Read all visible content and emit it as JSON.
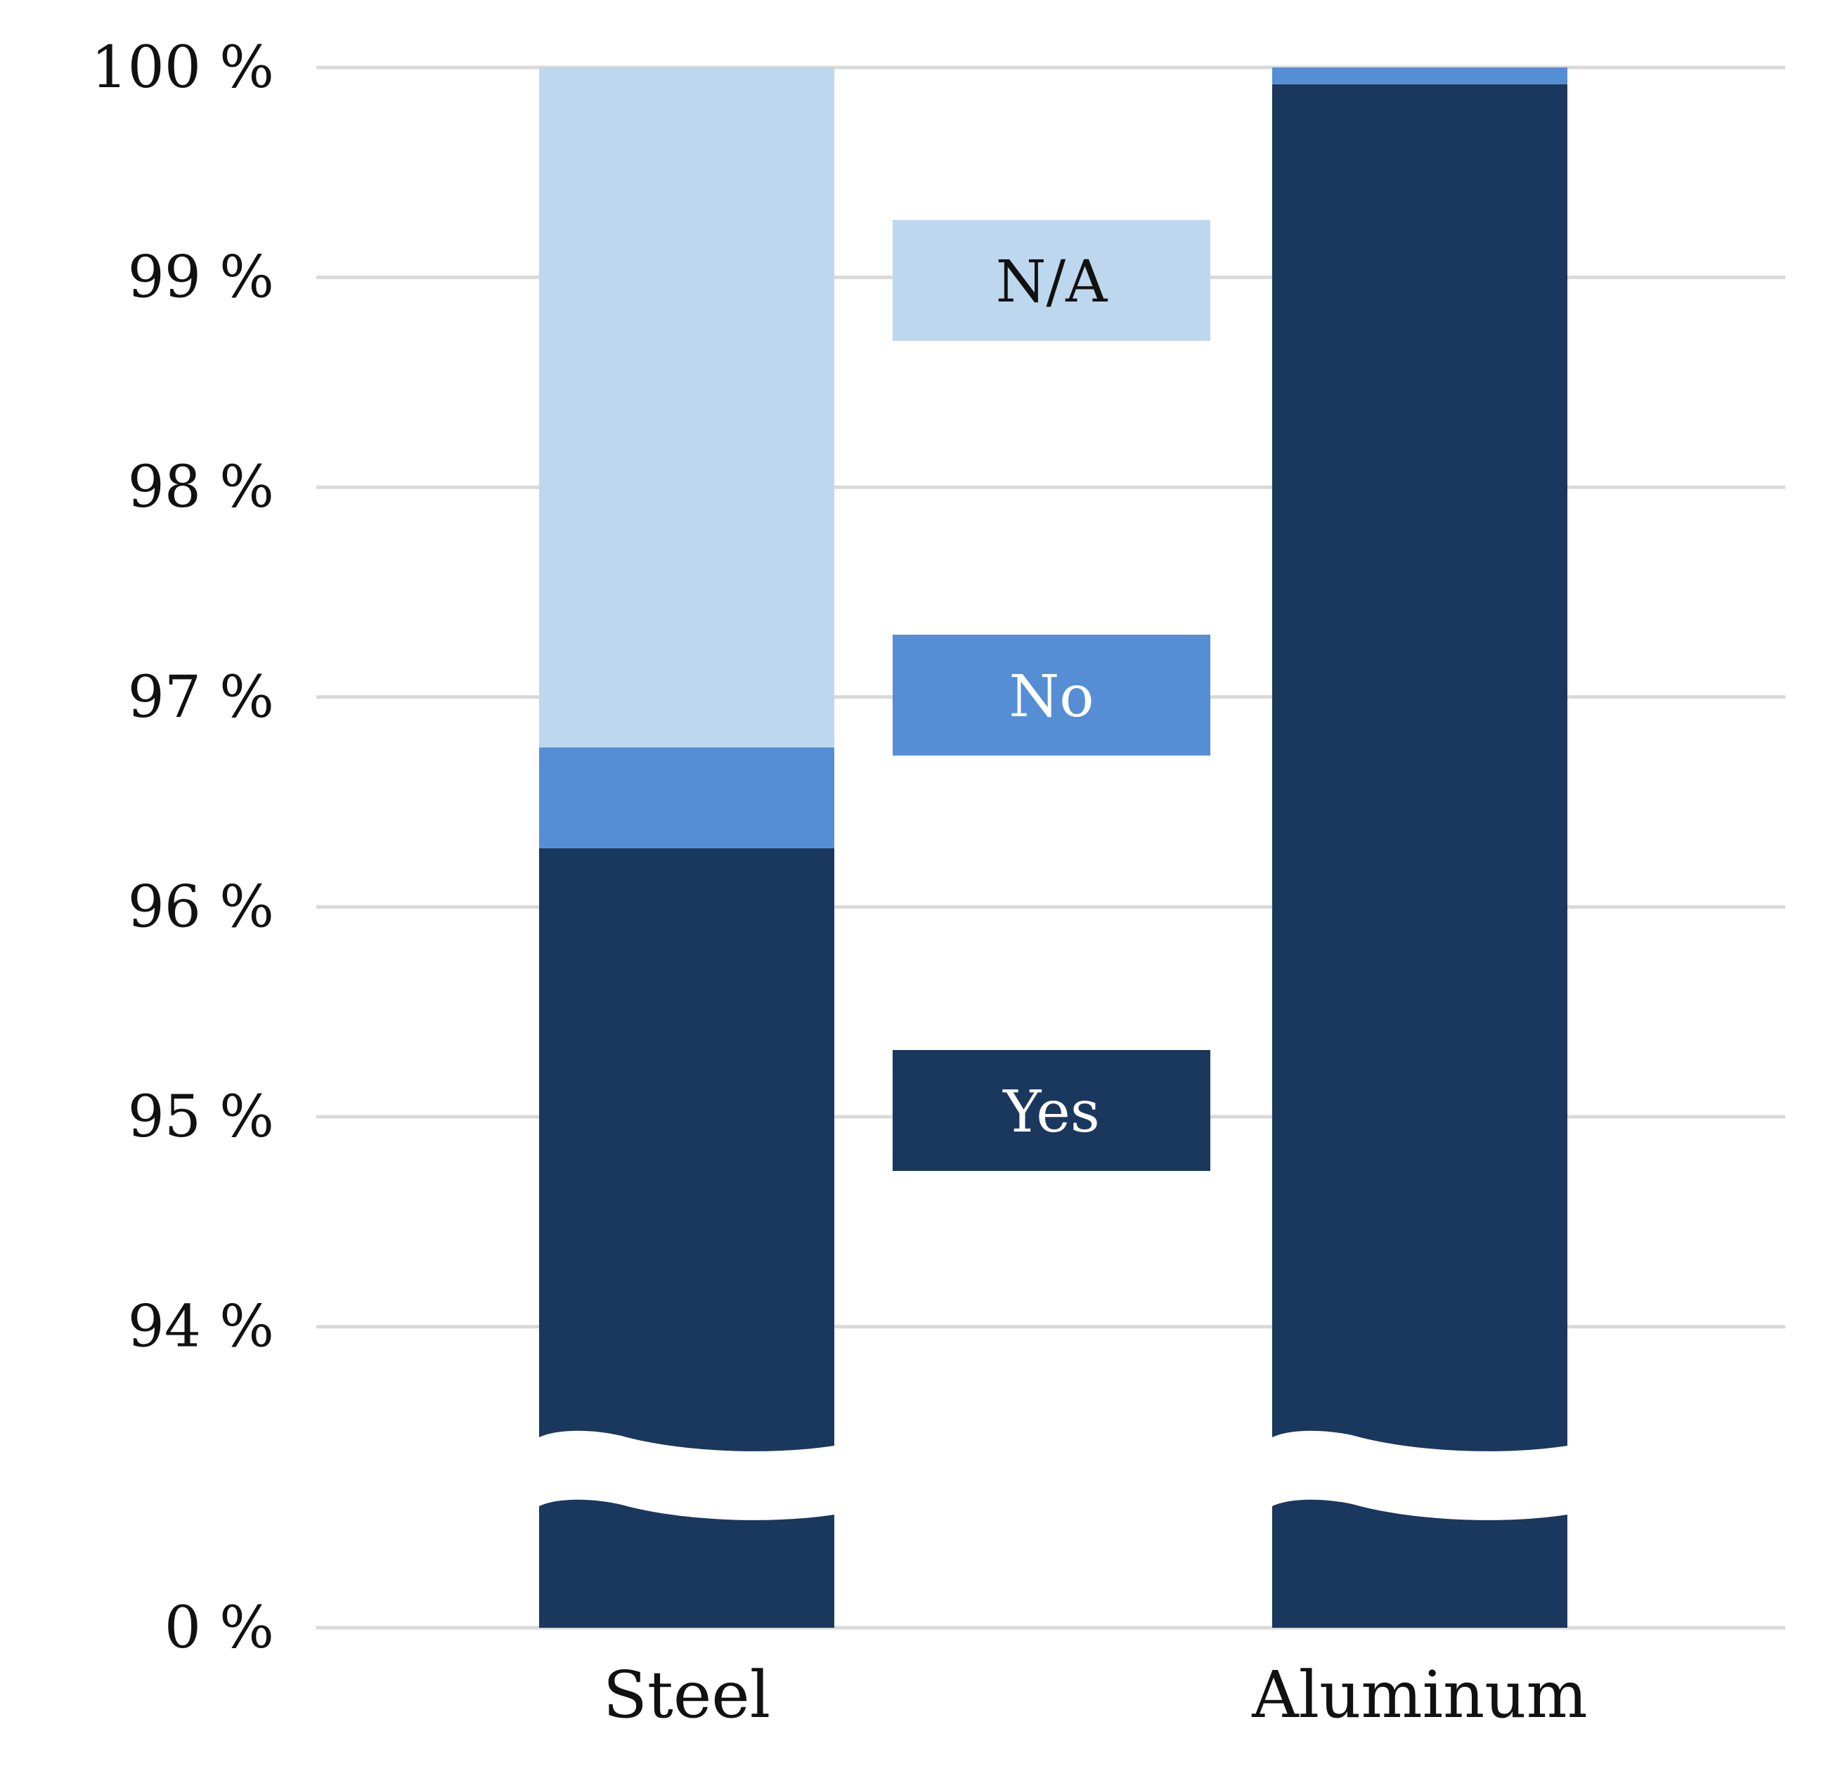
{
  "chart_data": {
    "type": "bar",
    "stacked": true,
    "broken_axis": true,
    "categories": [
      "Steel",
      "Aluminum"
    ],
    "series": [
      {
        "name": "Yes",
        "values": [
          96.28,
          99.92
        ],
        "color": "#1a375e"
      },
      {
        "name": "No",
        "values": [
          0.48,
          0.08
        ],
        "color": "#558ed5"
      },
      {
        "name": "N/A",
        "values": [
          3.24,
          0.0
        ],
        "color": "#bdd7ee"
      }
    ],
    "y_axis": {
      "visible_range": [
        94,
        100
      ],
      "ticks": [
        94,
        95,
        96,
        97,
        98,
        99,
        100
      ],
      "tick_labels": [
        "94 %",
        "95 %",
        "96 %",
        "97 %",
        "98 %",
        "99 %",
        "100 %"
      ],
      "baseline": 0,
      "baseline_label": "0 %"
    },
    "gridlines": true,
    "legend": {
      "placement": "center",
      "entries": [
        "N/A",
        "No",
        "Yes"
      ]
    },
    "title": "",
    "xlabel": "",
    "ylabel": ""
  }
}
